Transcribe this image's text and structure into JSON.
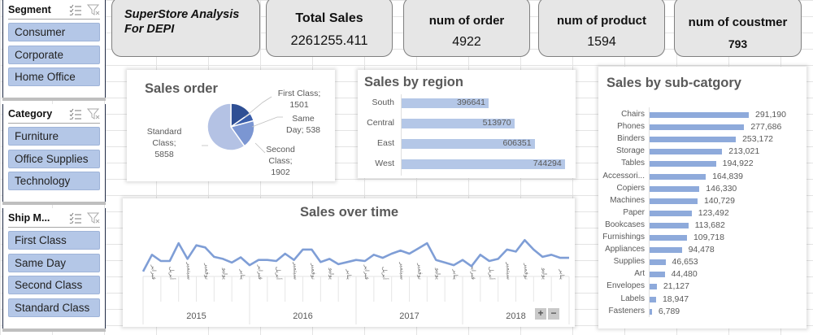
{
  "slicers": [
    {
      "title": "Segment",
      "items": [
        "Consumer",
        "Corporate",
        "Home Office"
      ]
    },
    {
      "title": "Category",
      "items": [
        "Furniture",
        "Office Supplies",
        "Technology"
      ]
    },
    {
      "title": "Ship M...",
      "items": [
        "First Class",
        "Same Day",
        "Second Class",
        "Standard Class"
      ]
    }
  ],
  "header": {
    "title_line1": "SuperStore Analysis",
    "title_line2": "For DEPI"
  },
  "kpis": [
    {
      "label": "Total Sales",
      "value": "2261255.411"
    },
    {
      "label": "num of order",
      "value": "4922"
    },
    {
      "label": "num of product",
      "value": "1594"
    },
    {
      "label": "num of coustmer",
      "value": "793"
    }
  ],
  "colors": {
    "slicer_item_bg": "#b4c7e7",
    "bar_region": "#b4c7e7",
    "bar_subcat": "#8eaadb",
    "line": "#7f9ed6",
    "pie_standard": "#b4c2e4",
    "pie_second": "#7b96d2",
    "pie_same_day": "#3a5eab",
    "pie_first": "#2f4f94"
  },
  "chart_data": [
    {
      "type": "pie",
      "title": "Sales order",
      "categories": [
        "First Class",
        "Same Day",
        "Second Class",
        "Standard Class"
      ],
      "values": [
        1501,
        538,
        1902,
        5858
      ],
      "labels": [
        "First Class; 1501",
        "Same Day; 538",
        "Second Class; 1902",
        "Standard Class; 5858"
      ]
    },
    {
      "type": "bar",
      "orientation": "horizontal",
      "title": "Sales by region",
      "categories": [
        "South",
        "Central",
        "East",
        "West"
      ],
      "values": [
        396641,
        513970,
        606351,
        744294
      ]
    },
    {
      "type": "bar",
      "orientation": "horizontal",
      "title": "Sales by sub-catgory",
      "categories": [
        "Chairs",
        "Phones",
        "Binders",
        "Storage",
        "Tables",
        "Accessori...",
        "Copiers",
        "Machines",
        "Paper",
        "Bookcases",
        "Furnishings",
        "Appliances",
        "Supplies",
        "Art",
        "Envelopes",
        "Labels",
        "Fasteners"
      ],
      "values": [
        291190,
        277686,
        253172,
        213021,
        194922,
        164839,
        146330,
        140729,
        123492,
        113682,
        109718,
        94478,
        46653,
        44480,
        21127,
        18947,
        6789
      ],
      "value_labels": [
        "291,190",
        "277,686",
        "253,172",
        "213,021",
        "194,922",
        "164,839",
        "146,330",
        "140,729",
        "123,492",
        "113,682",
        "109,718",
        "94,478",
        "46,653",
        "44,480",
        "21,127",
        "18,947",
        "6,789"
      ]
    },
    {
      "type": "line",
      "title": "Sales over time",
      "x_groups": [
        "2015",
        "2016",
        "2017",
        "2018"
      ],
      "x_tick_labels_per_year": [
        "فبراير",
        "أبريل",
        "سبتمبر",
        "نوفمبر",
        "يوليو",
        "يناير"
      ],
      "relative_values": [
        8,
        40,
        28,
        28,
        62,
        32,
        58,
        54,
        36,
        32,
        25,
        35,
        20,
        30,
        30,
        28,
        42,
        30,
        50,
        50,
        26,
        32,
        22,
        26,
        30,
        28,
        40,
        34,
        42,
        48,
        42,
        52,
        62,
        30,
        25,
        20,
        30,
        18,
        40,
        28,
        32,
        50,
        46,
        68,
        50,
        36,
        40,
        34,
        34
      ],
      "ylim": [
        0,
        100
      ],
      "controls": [
        "+",
        "−"
      ]
    }
  ]
}
